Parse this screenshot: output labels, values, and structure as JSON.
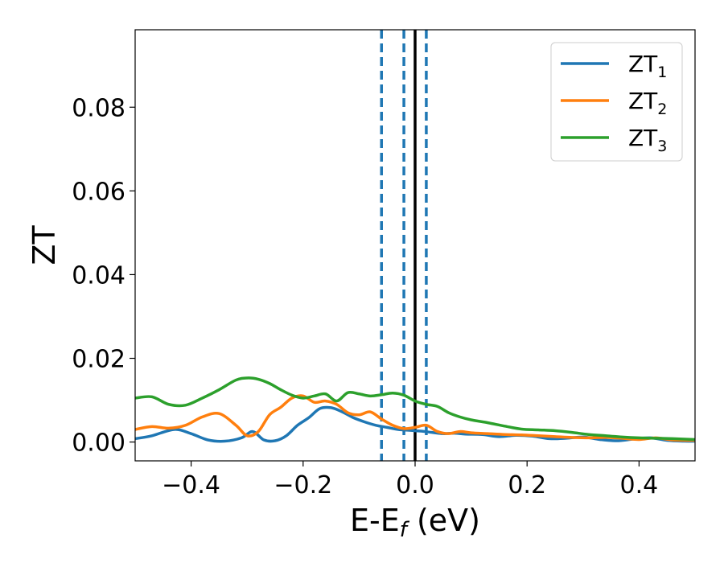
{
  "chart_data": {
    "type": "line",
    "xlabel": {
      "main": "E-E",
      "sub": "f",
      "unit": " (eV)"
    },
    "ylabel": "ZT",
    "xlim": [
      -0.5,
      0.5
    ],
    "ylim": [
      -0.0045,
      0.0985
    ],
    "xticks": [
      -0.4,
      -0.2,
      0.0,
      0.2,
      0.4
    ],
    "xtick_labels": [
      "−0.4",
      "−0.2",
      "0.0",
      "0.2",
      "0.4"
    ],
    "yticks": [
      0.0,
      0.02,
      0.04,
      0.06,
      0.08
    ],
    "ytick_labels": [
      "0.00",
      "0.02",
      "0.04",
      "0.06",
      "0.08"
    ],
    "grid": false,
    "legend_position": "top-right",
    "vlines": [
      {
        "x": -0.06,
        "style": "dashed",
        "color": "#1f77b4"
      },
      {
        "x": -0.02,
        "style": "dashed",
        "color": "#1f77b4"
      },
      {
        "x": 0.0,
        "style": "solid",
        "color": "#000000"
      },
      {
        "x": 0.02,
        "style": "dashed",
        "color": "#1f77b4"
      }
    ],
    "series": [
      {
        "name": "ZT",
        "sub": "1",
        "color": "#1f77b4",
        "x": [
          -0.5,
          -0.47,
          -0.43,
          -0.4,
          -0.37,
          -0.34,
          -0.31,
          -0.29,
          -0.27,
          -0.25,
          -0.23,
          -0.21,
          -0.19,
          -0.17,
          -0.15,
          -0.13,
          -0.11,
          -0.09,
          -0.07,
          -0.05,
          -0.03,
          -0.01,
          0.01,
          0.03,
          0.05,
          0.07,
          0.09,
          0.12,
          0.15,
          0.18,
          0.21,
          0.24,
          0.27,
          0.3,
          0.33,
          0.36,
          0.39,
          0.42,
          0.45,
          0.48,
          0.5
        ],
        "y": [
          0.0008,
          0.0015,
          0.003,
          0.002,
          0.0005,
          0.0002,
          0.001,
          0.0025,
          0.0005,
          0.0003,
          0.0015,
          0.004,
          0.0058,
          0.008,
          0.0082,
          0.0072,
          0.0058,
          0.0048,
          0.004,
          0.0035,
          0.003,
          0.0028,
          0.0026,
          0.0023,
          0.002,
          0.0021,
          0.0019,
          0.0018,
          0.0013,
          0.0016,
          0.0014,
          0.0008,
          0.0009,
          0.0012,
          0.0006,
          0.0003,
          0.0007,
          0.001,
          0.0004,
          0.0002,
          0.0002
        ]
      },
      {
        "name": "ZT",
        "sub": "2",
        "color": "#ff7f0e",
        "x": [
          -0.5,
          -0.47,
          -0.44,
          -0.41,
          -0.38,
          -0.35,
          -0.32,
          -0.3,
          -0.28,
          -0.26,
          -0.24,
          -0.22,
          -0.2,
          -0.18,
          -0.16,
          -0.14,
          -0.12,
          -0.1,
          -0.08,
          -0.06,
          -0.04,
          -0.02,
          0.0,
          0.02,
          0.04,
          0.06,
          0.08,
          0.1,
          0.13,
          0.16,
          0.19,
          0.22,
          0.25,
          0.28,
          0.31,
          0.34,
          0.37,
          0.4,
          0.43,
          0.46,
          0.5
        ],
        "y": [
          0.003,
          0.0037,
          0.0033,
          0.004,
          0.006,
          0.0068,
          0.004,
          0.0015,
          0.0025,
          0.0065,
          0.0083,
          0.0105,
          0.011,
          0.0095,
          0.0098,
          0.009,
          0.007,
          0.0065,
          0.0072,
          0.0055,
          0.004,
          0.0032,
          0.0035,
          0.004,
          0.0025,
          0.002,
          0.0025,
          0.0022,
          0.002,
          0.0018,
          0.0017,
          0.0015,
          0.0013,
          0.0011,
          0.001,
          0.0011,
          0.0009,
          0.0006,
          0.001,
          0.0005,
          0.0004
        ]
      },
      {
        "name": "ZT",
        "sub": "3",
        "color": "#2ca02c",
        "x": [
          -0.5,
          -0.47,
          -0.44,
          -0.41,
          -0.38,
          -0.35,
          -0.32,
          -0.3,
          -0.28,
          -0.26,
          -0.24,
          -0.22,
          -0.2,
          -0.18,
          -0.16,
          -0.14,
          -0.12,
          -0.1,
          -0.08,
          -0.06,
          -0.04,
          -0.02,
          0.0,
          0.02,
          0.04,
          0.06,
          0.08,
          0.1,
          0.13,
          0.16,
          0.19,
          0.22,
          0.25,
          0.28,
          0.31,
          0.34,
          0.37,
          0.4,
          0.43,
          0.46,
          0.5
        ],
        "y": [
          0.0105,
          0.0108,
          0.009,
          0.0088,
          0.0105,
          0.0125,
          0.0148,
          0.0153,
          0.015,
          0.014,
          0.0125,
          0.0112,
          0.0105,
          0.011,
          0.0115,
          0.0098,
          0.0118,
          0.0115,
          0.011,
          0.0113,
          0.0117,
          0.0112,
          0.0098,
          0.009,
          0.0085,
          0.007,
          0.006,
          0.0053,
          0.0046,
          0.0038,
          0.0031,
          0.0029,
          0.0027,
          0.0023,
          0.0018,
          0.0015,
          0.0012,
          0.001,
          0.0009,
          0.0008,
          0.0006
        ]
      }
    ]
  }
}
